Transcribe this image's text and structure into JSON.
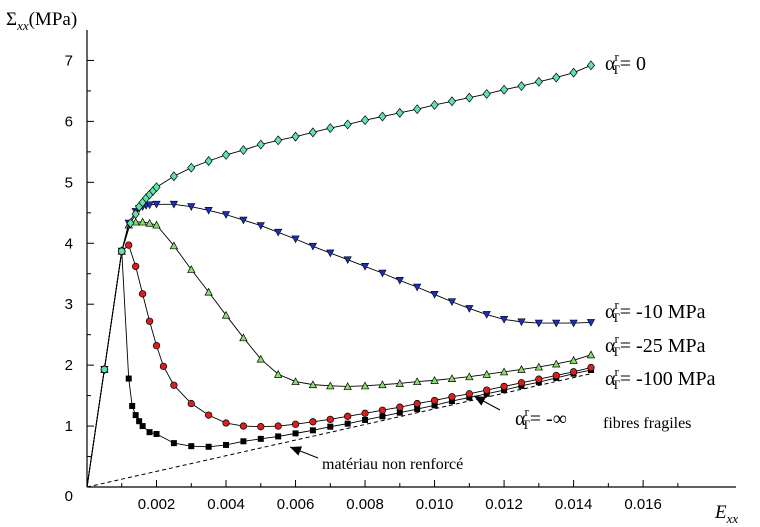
{
  "chart_data": {
    "type": "line",
    "ylabel": {
      "sym": "Σ",
      "sub": "xx",
      "unit": "(MPa)"
    },
    "xlabel": {
      "sym": "E",
      "sub": "xx"
    },
    "xlim": [
      0,
      0.0185
    ],
    "ylim": [
      0,
      7.5
    ],
    "x_ticks": [
      {
        "v": 0.002,
        "label": "0.002"
      },
      {
        "v": 0.004,
        "label": "0.004"
      },
      {
        "v": 0.006,
        "label": "0.006"
      },
      {
        "v": 0.008,
        "label": "0.008"
      },
      {
        "v": 0.01,
        "label": "0.010"
      },
      {
        "v": 0.012,
        "label": "0.012"
      },
      {
        "v": 0.014,
        "label": "0.014"
      },
      {
        "v": 0.016,
        "label": "0.016"
      }
    ],
    "y_ticks": [
      {
        "v": 1,
        "label": "1"
      },
      {
        "v": 2,
        "label": "2"
      },
      {
        "v": 3,
        "label": "3"
      },
      {
        "v": 4,
        "label": "4"
      },
      {
        "v": 5,
        "label": "5"
      },
      {
        "v": 6,
        "label": "6"
      },
      {
        "v": 7,
        "label": "7"
      }
    ],
    "origin_label": "0",
    "grid": false,
    "series": [
      {
        "name": "α_T^r = 0",
        "label_parts": {
          "alpha": "α",
          "sup": "r",
          "sub": "T",
          "rest": "= 0"
        },
        "marker": "diamond",
        "color": "#5fe3a8",
        "x": [
          0,
          0.0005,
          0.001,
          0.00125,
          0.0014,
          0.0015,
          0.0016,
          0.0017,
          0.0018,
          0.0019,
          0.002,
          0.0025,
          0.003,
          0.0035,
          0.004,
          0.0045,
          0.005,
          0.0055,
          0.006,
          0.0065,
          0.007,
          0.0075,
          0.008,
          0.0085,
          0.009,
          0.0095,
          0.01,
          0.0105,
          0.011,
          0.0115,
          0.012,
          0.0125,
          0.013,
          0.0135,
          0.014,
          0.0145
        ],
        "y": [
          0,
          1.93,
          3.87,
          4.33,
          4.48,
          4.6,
          4.67,
          4.74,
          4.8,
          4.86,
          4.92,
          5.1,
          5.24,
          5.35,
          5.45,
          5.53,
          5.62,
          5.69,
          5.75,
          5.82,
          5.89,
          5.95,
          6.02,
          6.08,
          6.14,
          6.2,
          6.27,
          6.33,
          6.39,
          6.45,
          6.52,
          6.58,
          6.65,
          6.72,
          6.8,
          6.92
        ]
      },
      {
        "name": "α_T^r = -10 MPa",
        "label_parts": {
          "alpha": "α",
          "sup": "r",
          "sub": "T",
          "rest": "= -10 MPa"
        },
        "marker": "triangle-down",
        "color": "#1e2fbf",
        "x": [
          0,
          0.0005,
          0.001,
          0.0012,
          0.0014,
          0.0015,
          0.0016,
          0.0017,
          0.0018,
          0.002,
          0.0025,
          0.003,
          0.0035,
          0.004,
          0.0045,
          0.005,
          0.0055,
          0.006,
          0.0065,
          0.007,
          0.0075,
          0.008,
          0.0085,
          0.009,
          0.0095,
          0.01,
          0.0105,
          0.011,
          0.0115,
          0.012,
          0.0125,
          0.013,
          0.0135,
          0.014,
          0.0145
        ],
        "y": [
          0,
          1.93,
          3.87,
          4.33,
          4.52,
          4.57,
          4.6,
          4.62,
          4.63,
          4.64,
          4.64,
          4.6,
          4.54,
          4.47,
          4.38,
          4.29,
          4.18,
          4.07,
          3.95,
          3.84,
          3.73,
          3.62,
          3.51,
          3.39,
          3.28,
          3.16,
          3.04,
          2.93,
          2.83,
          2.75,
          2.71,
          2.69,
          2.69,
          2.69,
          2.7
        ]
      },
      {
        "name": "α_T^r = -25 MPa",
        "label_parts": {
          "alpha": "α",
          "sup": "r",
          "sub": "T",
          "rest": "= -25 MPa"
        },
        "marker": "triangle-up",
        "color": "#86e06c",
        "x": [
          0,
          0.0005,
          0.001,
          0.0012,
          0.0014,
          0.0016,
          0.0018,
          0.002,
          0.0025,
          0.003,
          0.0035,
          0.004,
          0.0045,
          0.005,
          0.0055,
          0.006,
          0.0065,
          0.007,
          0.0075,
          0.008,
          0.0085,
          0.009,
          0.0095,
          0.01,
          0.0105,
          0.011,
          0.0115,
          0.012,
          0.0125,
          0.013,
          0.0135,
          0.014,
          0.0145
        ],
        "y": [
          0,
          1.93,
          3.87,
          4.3,
          4.35,
          4.35,
          4.33,
          4.3,
          3.96,
          3.57,
          3.2,
          2.82,
          2.45,
          2.1,
          1.85,
          1.73,
          1.68,
          1.66,
          1.65,
          1.66,
          1.68,
          1.7,
          1.73,
          1.75,
          1.78,
          1.81,
          1.85,
          1.89,
          1.93,
          1.97,
          2.02,
          2.08,
          2.17
        ]
      },
      {
        "name": "α_T^r = -100 MPa",
        "label_parts": {
          "alpha": "α",
          "sup": "r",
          "sub": "T",
          "rest": "= -100 MPa"
        },
        "marker": "circle",
        "color": "#d81e1e",
        "x": [
          0,
          0.0005,
          0.001,
          0.0012,
          0.0014,
          0.0016,
          0.0018,
          0.002,
          0.0022,
          0.0025,
          0.003,
          0.0035,
          0.004,
          0.0045,
          0.005,
          0.0055,
          0.006,
          0.0065,
          0.007,
          0.0075,
          0.008,
          0.0085,
          0.009,
          0.0095,
          0.01,
          0.0105,
          0.011,
          0.0115,
          0.012,
          0.0125,
          0.013,
          0.0135,
          0.014,
          0.0145
        ],
        "y": [
          0,
          1.93,
          3.87,
          3.97,
          3.62,
          3.17,
          2.72,
          2.32,
          1.98,
          1.67,
          1.37,
          1.18,
          1.05,
          1.0,
          0.99,
          1.0,
          1.03,
          1.07,
          1.11,
          1.16,
          1.21,
          1.26,
          1.31,
          1.37,
          1.42,
          1.48,
          1.53,
          1.59,
          1.65,
          1.71,
          1.77,
          1.83,
          1.89,
          1.96
        ]
      },
      {
        "name": "α_T^r = -∞ fibres fragiles",
        "label_parts": {
          "alpha": "α",
          "sup": "r",
          "sub": "T",
          "rest": "= -∞",
          "note": "fibres fragiles"
        },
        "marker": "square",
        "color": "#000000",
        "x": [
          0,
          0.0005,
          0.001,
          0.0012,
          0.0013,
          0.0014,
          0.0015,
          0.0016,
          0.0018,
          0.002,
          0.0025,
          0.003,
          0.0035,
          0.004,
          0.0045,
          0.005,
          0.0055,
          0.006,
          0.0065,
          0.007,
          0.0075,
          0.008,
          0.0085,
          0.009,
          0.0095,
          0.01,
          0.0105,
          0.011,
          0.0115,
          0.012,
          0.0125,
          0.013,
          0.0135,
          0.014,
          0.0145
        ],
        "y": [
          0,
          1.93,
          3.87,
          1.78,
          1.33,
          1.18,
          1.08,
          1.0,
          0.9,
          0.87,
          0.72,
          0.67,
          0.66,
          0.69,
          0.75,
          0.79,
          0.83,
          0.88,
          0.93,
          0.99,
          1.04,
          1.1,
          1.16,
          1.22,
          1.28,
          1.34,
          1.41,
          1.47,
          1.53,
          1.59,
          1.66,
          1.72,
          1.79,
          1.86,
          1.92
        ]
      }
    ],
    "reference_line": {
      "label": "matériau non renforcé",
      "style": "dashed",
      "x": [
        0,
        0.0145
      ],
      "y": [
        0,
        1.86
      ]
    },
    "annotations": [
      {
        "text": "matériau non renforcé",
        "target": "reference_line"
      },
      {
        "text": "fibres fragiles",
        "target": "α_T^r = -∞ fibres fragiles"
      }
    ]
  }
}
